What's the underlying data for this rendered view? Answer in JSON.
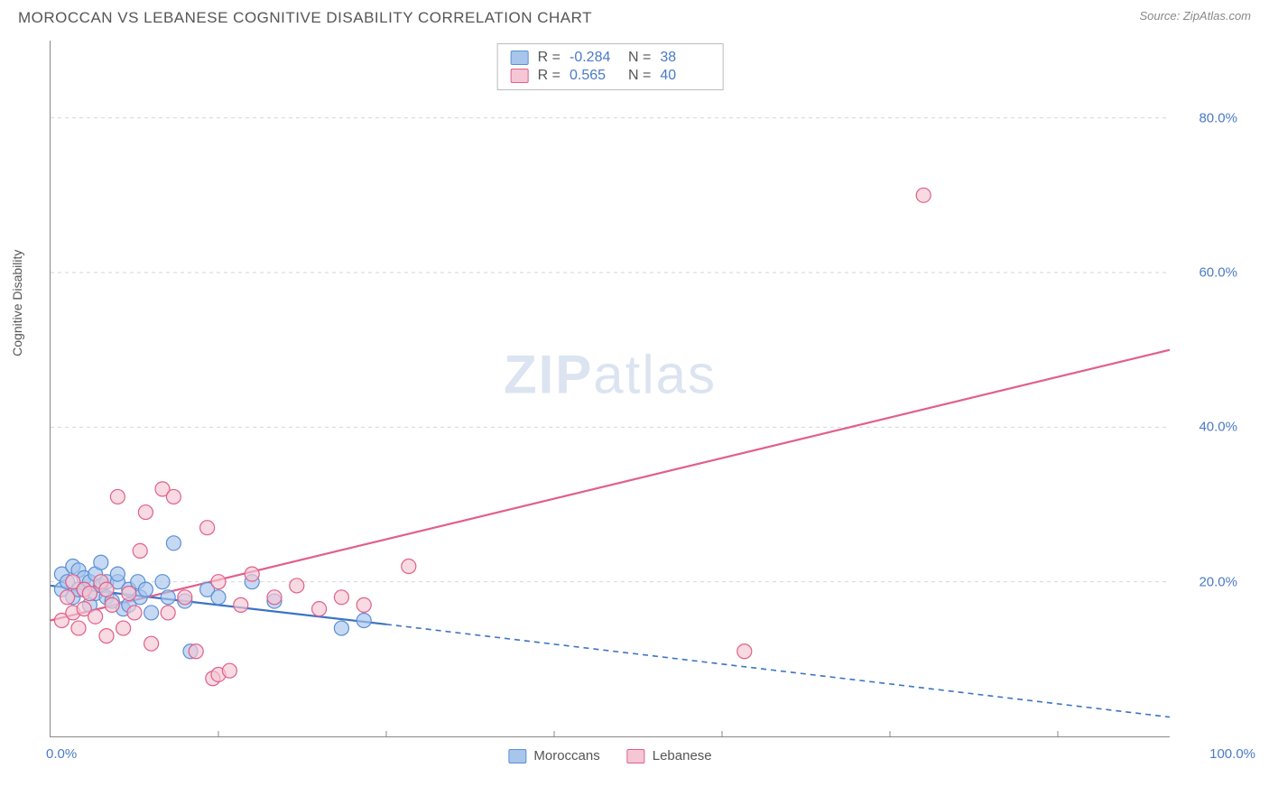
{
  "header": {
    "title": "MOROCCAN VS LEBANESE COGNITIVE DISABILITY CORRELATION CHART",
    "source": "Source: ZipAtlas.com"
  },
  "chart": {
    "type": "scatter",
    "ylabel": "Cognitive Disability",
    "watermark_bold": "ZIP",
    "watermark_rest": "atlas",
    "xlim": [
      0,
      100
    ],
    "ylim": [
      0,
      90
    ],
    "x_min_label": "0.0%",
    "x_max_label": "100.0%",
    "y_ticks": [
      20,
      40,
      60,
      80
    ],
    "y_tick_labels": [
      "20.0%",
      "40.0%",
      "60.0%",
      "80.0%"
    ],
    "x_ticks": [
      15,
      30,
      45,
      60,
      75,
      90
    ],
    "grid_color": "#d6d6d6",
    "background_color": "#ffffff",
    "axis_label_color": "#4a7ac7",
    "marker_radius": 8,
    "marker_stroke_width": 1.2,
    "series": [
      {
        "name": "Moroccans",
        "fill_color": "#a8c5ec",
        "stroke_color": "#5b8fd6",
        "line_color": "#3b74c4",
        "points": [
          [
            1,
            19
          ],
          [
            1,
            21
          ],
          [
            1.5,
            20
          ],
          [
            2,
            22
          ],
          [
            2,
            18
          ],
          [
            2.5,
            19
          ],
          [
            2.5,
            21.5
          ],
          [
            3,
            20.5
          ],
          [
            3,
            19
          ],
          [
            3.5,
            17
          ],
          [
            3.5,
            20
          ],
          [
            4,
            21
          ],
          [
            4,
            18.5
          ],
          [
            4.5,
            22.5
          ],
          [
            4.5,
            19.5
          ],
          [
            5,
            20
          ],
          [
            5,
            18
          ],
          [
            5.5,
            17.5
          ],
          [
            6,
            20
          ],
          [
            6,
            21
          ],
          [
            6.5,
            16.5
          ],
          [
            7,
            19
          ],
          [
            7,
            17
          ],
          [
            7.8,
            20
          ],
          [
            8,
            18
          ],
          [
            8.5,
            19
          ],
          [
            9,
            16
          ],
          [
            10,
            20
          ],
          [
            10.5,
            18
          ],
          [
            11,
            25
          ],
          [
            12,
            17.5
          ],
          [
            12.5,
            11
          ],
          [
            14,
            19
          ],
          [
            15,
            18
          ],
          [
            18,
            20
          ],
          [
            20,
            17.5
          ],
          [
            26,
            14
          ],
          [
            28,
            15
          ]
        ],
        "trend": {
          "x1": 0,
          "y1": 19.5,
          "x2": 30,
          "y2": 14.5,
          "x2_dash": 100,
          "y2_dash": 2.5
        }
      },
      {
        "name": "Lebanese",
        "fill_color": "#f5c6d3",
        "stroke_color": "#e15f8a",
        "line_color": "#e15f8a",
        "points": [
          [
            1,
            15
          ],
          [
            1.5,
            18
          ],
          [
            2,
            16
          ],
          [
            2,
            20
          ],
          [
            2.5,
            14
          ],
          [
            3,
            19
          ],
          [
            3,
            16.5
          ],
          [
            3.5,
            18.5
          ],
          [
            4,
            15.5
          ],
          [
            4.5,
            20
          ],
          [
            5,
            13
          ],
          [
            5,
            19
          ],
          [
            5.5,
            17
          ],
          [
            6,
            31
          ],
          [
            6.5,
            14
          ],
          [
            7,
            18.5
          ],
          [
            7.5,
            16
          ],
          [
            8,
            24
          ],
          [
            8.5,
            29
          ],
          [
            9,
            12
          ],
          [
            10,
            32
          ],
          [
            10.5,
            16
          ],
          [
            11,
            31
          ],
          [
            12,
            18
          ],
          [
            13,
            11
          ],
          [
            14,
            27
          ],
          [
            14.5,
            7.5
          ],
          [
            15,
            8
          ],
          [
            15,
            20
          ],
          [
            16,
            8.5
          ],
          [
            17,
            17
          ],
          [
            18,
            21
          ],
          [
            20,
            18
          ],
          [
            22,
            19.5
          ],
          [
            24,
            16.5
          ],
          [
            26,
            18
          ],
          [
            28,
            17
          ],
          [
            32,
            22
          ],
          [
            62,
            11
          ],
          [
            78,
            70
          ]
        ],
        "trend": {
          "x1": 0,
          "y1": 15,
          "x2": 100,
          "y2": 50
        }
      }
    ],
    "stats": [
      {
        "swatch_fill": "#a8c5ec",
        "swatch_stroke": "#5b8fd6",
        "R": "-0.284",
        "N": "38"
      },
      {
        "swatch_fill": "#f5c6d3",
        "swatch_stroke": "#e15f8a",
        "R": "0.565",
        "N": "40"
      }
    ],
    "legend_items": [
      {
        "label": "Moroccans",
        "fill": "#a8c5ec",
        "stroke": "#5b8fd6"
      },
      {
        "label": "Lebanese",
        "fill": "#f5c6d3",
        "stroke": "#e15f8a"
      }
    ]
  }
}
